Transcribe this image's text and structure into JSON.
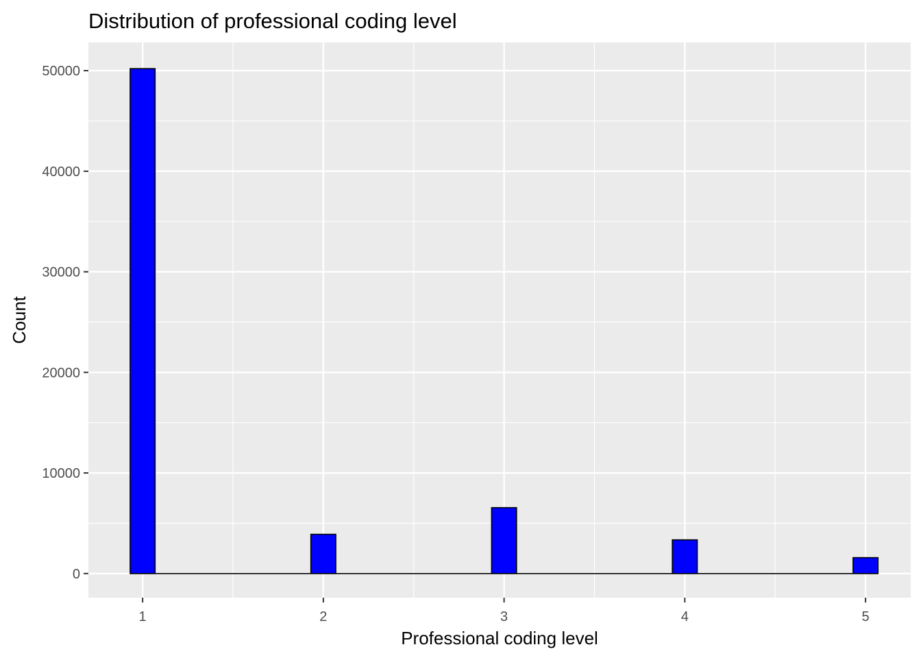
{
  "chart_data": {
    "type": "bar",
    "title": "Distribution of professional coding level",
    "xlabel": "Professional coding level",
    "ylabel": "Count",
    "bins": [
      {
        "x": 1,
        "count": 50200
      },
      {
        "x": 2,
        "count": 3900
      },
      {
        "x": 3,
        "count": 6550
      },
      {
        "x": 4,
        "count": 3350
      },
      {
        "x": 5,
        "count": 1580
      }
    ],
    "xlim": [
      0.7,
      5.25
    ],
    "ylim": [
      -2400,
      52800
    ],
    "x_ticks": [
      1,
      2,
      3,
      4,
      5
    ],
    "x_tick_labels": [
      "1",
      "2",
      "3",
      "4",
      "5"
    ],
    "y_ticks": [
      0,
      10000,
      20000,
      30000,
      40000,
      50000
    ],
    "y_tick_labels": [
      "0",
      "10000",
      "20000",
      "30000",
      "40000",
      "50000"
    ],
    "bin_width": 0.1379,
    "grid": true,
    "colors": {
      "bar_fill": "#0000ff",
      "bar_outline": "#000000",
      "panel_background": "#ebebeb",
      "grid": "#ffffff"
    }
  }
}
